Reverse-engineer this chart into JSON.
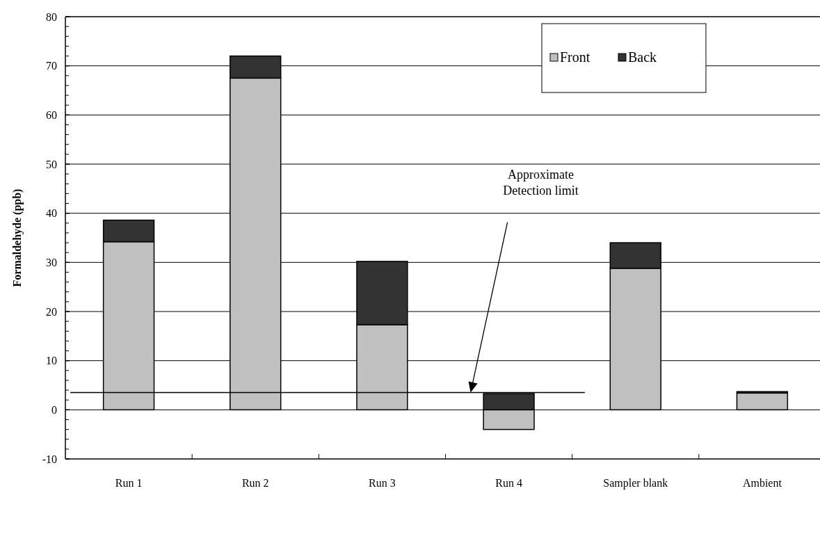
{
  "chart_data": {
    "type": "bar",
    "stacked": true,
    "ylabel": "Formaldehyde (ppb)",
    "categories": [
      "Run 1",
      "Run 2",
      "Run 3",
      "Run 4",
      "Sampler blank",
      "Ambient"
    ],
    "series": [
      {
        "name": "Front",
        "color": "#c0c0c0",
        "values": [
          34.2,
          67.5,
          17.3,
          -4,
          28.8,
          3.4
        ]
      },
      {
        "name": "Back",
        "color": "#333333",
        "values": [
          4.4,
          4.5,
          12.9,
          3.3,
          5.2,
          0.3
        ]
      }
    ],
    "ylim": [
      -10,
      80
    ],
    "yticks": [
      -10,
      0,
      10,
      20,
      30,
      40,
      50,
      60,
      70,
      80
    ],
    "grid": "y",
    "legend": "top right",
    "ref_lines": [
      {
        "axis": "y",
        "value": 3.5,
        "color": "#000000"
      }
    ],
    "annotations": [
      "Approximate Detection limit"
    ]
  }
}
